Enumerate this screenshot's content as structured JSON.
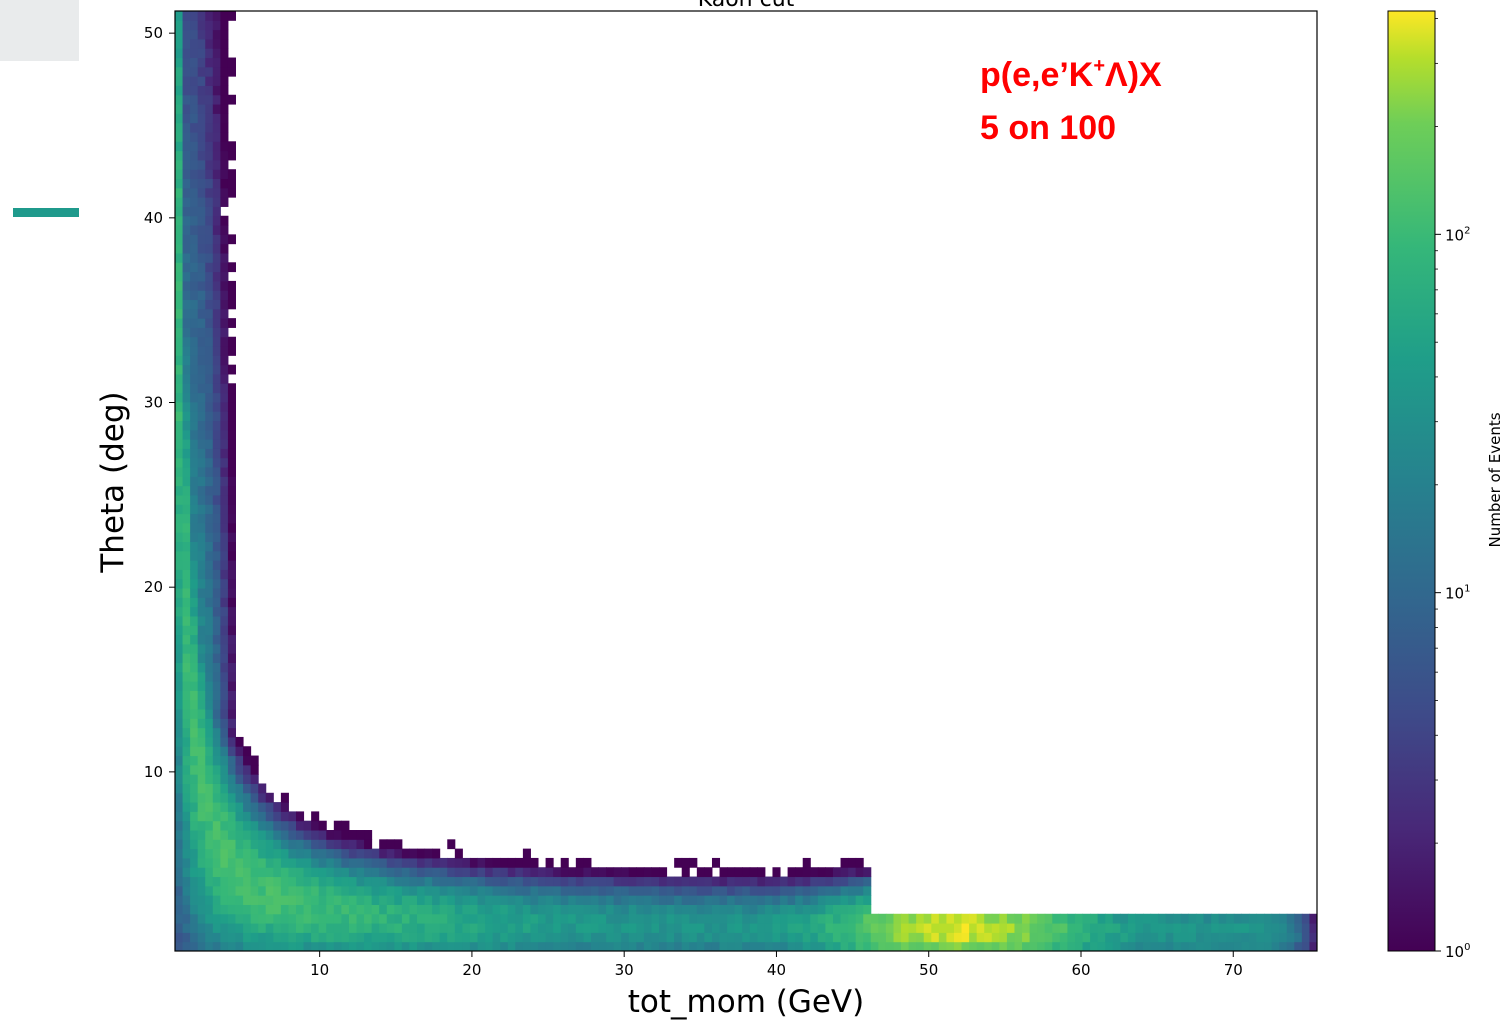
{
  "slide": {
    "accent_colors": [
      "#e9ebec",
      "#1f9a8c"
    ]
  },
  "chart_data": {
    "type": "heatmap",
    "title": "Kaon cut",
    "xlabel": "tot_mom (GeV)",
    "ylabel": "Theta (deg)",
    "xlim": [
      0.5,
      75.5
    ],
    "ylim": [
      0.3,
      51.2
    ],
    "x_ticks": [
      "10",
      "20",
      "30",
      "40",
      "50",
      "60",
      "70"
    ],
    "x_tick_values": [
      10,
      20,
      30,
      40,
      50,
      60,
      70
    ],
    "y_ticks": [
      "10",
      "20",
      "30",
      "40",
      "50"
    ],
    "y_tick_values": [
      10,
      20,
      30,
      40,
      50
    ],
    "colorbar": {
      "label": "Number of Events",
      "scale": "log",
      "range": [
        1,
        420
      ],
      "ticks": [
        {
          "value": 1,
          "base": "10",
          "exp": "0"
        },
        {
          "value": 10,
          "base": "10",
          "exp": "1"
        },
        {
          "value": 100,
          "base": "10",
          "exp": "2"
        }
      ],
      "colormap": "viridis"
    },
    "distribution": {
      "description_points_theta_vs_mom": [
        {
          "x": 1.5,
          "y": 40
        },
        {
          "x": 2.5,
          "y": 20
        },
        {
          "x": 4,
          "y": 10
        },
        {
          "x": 6,
          "y": 6
        },
        {
          "x": 10,
          "y": 4
        },
        {
          "x": 20,
          "y": 2.6
        },
        {
          "x": 40,
          "y": 1.7
        },
        {
          "x": 52,
          "y": 1.5
        },
        {
          "x": 75,
          "y": 1.3
        }
      ],
      "peak_x": 52,
      "peak_y": 1.4,
      "peak_counts": 400
    },
    "annotations": [
      {
        "line1_pre": "p(e,e’K",
        "line1_sup": "+",
        "line1_post": "Λ)X",
        "line2": "5 on 100",
        "color": "#ff0000"
      }
    ],
    "grid": false,
    "legend": "none"
  }
}
